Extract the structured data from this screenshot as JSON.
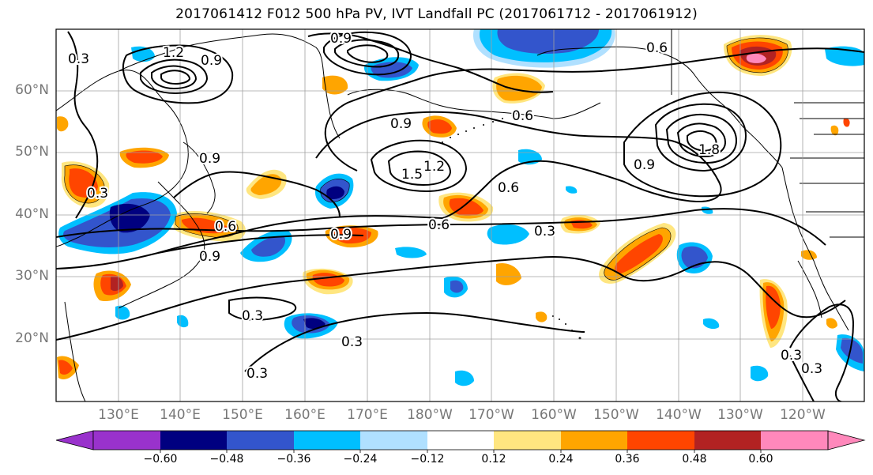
{
  "title": "2017061412 F012 500 hPa PV, IVT Landfall PC (2017061712 - 2017061912)",
  "lat_labels": [
    "60°N",
    "50°N",
    "40°N",
    "30°N",
    "20°N"
  ],
  "lon_labels": [
    "130°E",
    "140°E",
    "150°E",
    "160°E",
    "170°E",
    "180°W",
    "170°W",
    "160°W",
    "150°W",
    "140°W",
    "130°W",
    "120°W"
  ],
  "colorbar": {
    "ticks": [
      "−0.60",
      "−0.48",
      "−0.36",
      "−0.24",
      "−0.12",
      "0.12",
      "0.24",
      "0.36",
      "0.48",
      "0.60"
    ],
    "colors": [
      "#9932cc",
      "#000080",
      "#3355cc",
      "#00bfff",
      "#b0e0ff",
      "#ffffff",
      "#ffe680",
      "#ffa500",
      "#ff4500",
      "#b22222",
      "#ff88bb"
    ]
  },
  "contour_labels": [
    "0.3",
    "0.6",
    "0.9",
    "1.2",
    "1.5",
    "1.8"
  ]
}
